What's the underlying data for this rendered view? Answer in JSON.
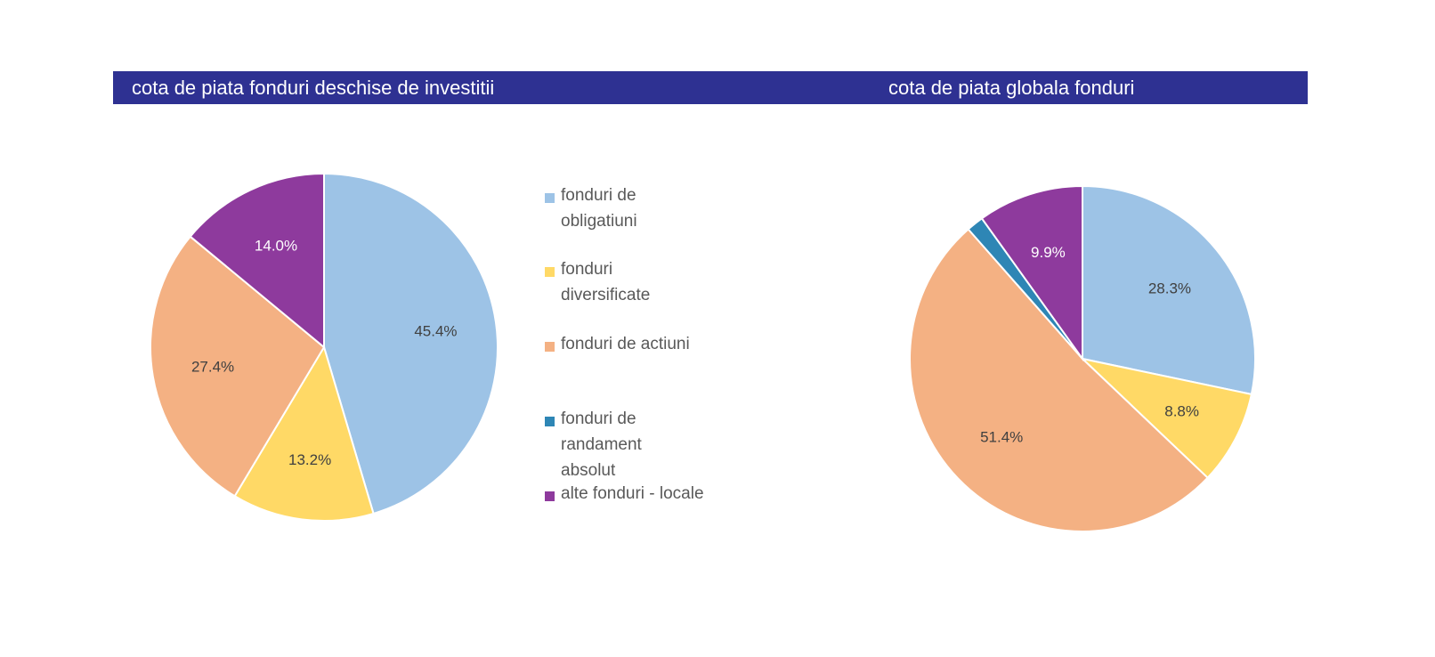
{
  "chart_data": [
    {
      "type": "pie",
      "title": "cota de piata fonduri deschise de investitii",
      "categories": [
        "fonduri de obligatiuni",
        "fonduri diversificate",
        "fonduri de actiuni",
        "fonduri de randament absolut",
        "alte fonduri - locale"
      ],
      "values": [
        45.4,
        13.2,
        27.4,
        0.0,
        14.0
      ],
      "labels": [
        "45.4%",
        "13.2%",
        "27.4%",
        "",
        "14.0%"
      ],
      "start_angle": "12 o'clock",
      "direction": "clockwise"
    },
    {
      "type": "pie",
      "title": "cota de piata globala fonduri",
      "categories": [
        "fonduri de obligatiuni",
        "fonduri diversificate",
        "fonduri de actiuni",
        "fonduri de randament absolut",
        "alte fonduri - locale"
      ],
      "values": [
        28.3,
        8.8,
        51.4,
        1.6,
        9.9
      ],
      "labels": [
        "28.3%",
        "8.8%",
        "51.4%",
        "",
        "9.9%"
      ],
      "start_angle": "12 o'clock",
      "direction": "clockwise"
    }
  ],
  "legend": {
    "placement": "between charts",
    "items": [
      "fonduri de obligatiuni",
      "fonduri diversificate",
      "fonduri de actiuni",
      "fonduri de randament absolut",
      "alte fonduri - locale"
    ]
  },
  "colors": [
    "#9dc3e6",
    "#ffd966",
    "#f4b183",
    "#2e86b5",
    "#8e3a9d"
  ],
  "title_bar_color": "#2e3192"
}
